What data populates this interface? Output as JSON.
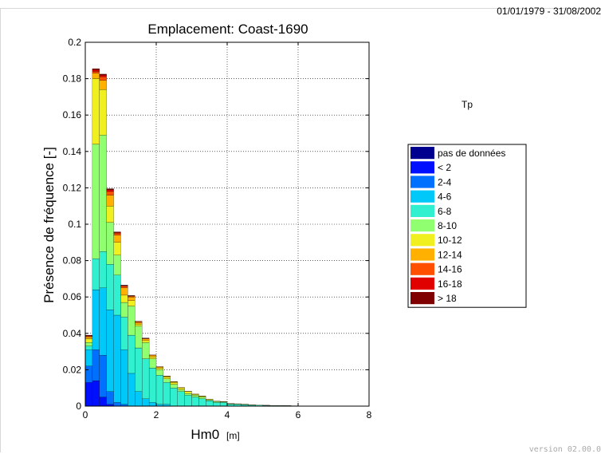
{
  "header": {
    "date_range": "01/01/1979 - 31/08/2002"
  },
  "footer": {
    "version": "version 02.00.0"
  },
  "chart_data": {
    "type": "bar",
    "stacked": true,
    "title": "Emplacement: Coast-1690",
    "xlabel": "Hm0",
    "xlabel_unit": "[m]",
    "ylabel": "Présence de fréquence [-]",
    "xlim": [
      0,
      8
    ],
    "ylim": [
      0,
      0.2
    ],
    "xticks": [
      0,
      2,
      4,
      6,
      8
    ],
    "yticks": [
      0,
      0.02,
      0.04,
      0.06,
      0.08,
      0.1,
      0.12,
      0.14,
      0.16,
      0.18,
      0.2
    ],
    "ytick_labels": [
      "0",
      "0.02",
      "0.04",
      "0.06",
      "0.08",
      "0.1",
      "0.12",
      "0.14",
      "0.16",
      "0.18",
      "0.2"
    ],
    "grid": true,
    "bin_width": 0.2,
    "legend_title": "Tp",
    "legend_position": "right",
    "x": [
      0.1,
      0.3,
      0.5,
      0.7,
      0.9,
      1.1,
      1.3,
      1.5,
      1.7,
      1.9,
      2.1,
      2.3,
      2.5,
      2.7,
      2.9,
      3.1,
      3.3,
      3.5,
      3.7,
      3.9,
      4.1,
      4.3,
      4.5,
      4.7,
      4.9,
      5.1,
      5.3,
      5.5,
      5.7,
      5.9,
      6.1,
      6.3,
      6.5,
      6.7,
      6.9,
      7.1
    ],
    "series": [
      {
        "name": "pas de données",
        "color": "#00008f",
        "values": [
          0,
          0,
          0,
          0,
          0,
          0,
          0,
          0,
          0,
          0,
          0,
          0,
          0,
          0,
          0,
          0,
          0,
          0,
          0,
          0,
          0,
          0,
          0,
          0,
          0,
          0,
          0,
          0,
          0,
          0,
          0,
          0,
          0,
          0,
          0,
          0
        ]
      },
      {
        "name": "< 2",
        "color": "#0010ff",
        "values": [
          0.013,
          0.014,
          0.005,
          0.001,
          0,
          0,
          0,
          0,
          0,
          0,
          0,
          0,
          0,
          0,
          0,
          0,
          0,
          0,
          0,
          0,
          0,
          0,
          0,
          0,
          0,
          0,
          0,
          0,
          0,
          0,
          0,
          0,
          0,
          0,
          0,
          0
        ]
      },
      {
        "name": "2-4",
        "color": "#0070ff",
        "values": [
          0.009,
          0.017,
          0.023,
          0.007,
          0.002,
          0.001,
          0,
          0,
          0,
          0,
          0,
          0,
          0,
          0,
          0,
          0,
          0,
          0,
          0,
          0,
          0,
          0,
          0,
          0,
          0,
          0,
          0,
          0,
          0,
          0,
          0,
          0,
          0,
          0,
          0,
          0
        ]
      },
      {
        "name": "4-6",
        "color": "#00c8f8",
        "values": [
          0.009,
          0.033,
          0.037,
          0.045,
          0.048,
          0.03,
          0.018,
          0.008,
          0.004,
          0.002,
          0.001,
          0.001,
          0,
          0,
          0,
          0,
          0,
          0,
          0,
          0,
          0,
          0,
          0,
          0,
          0,
          0,
          0,
          0,
          0,
          0,
          0,
          0,
          0,
          0,
          0,
          0
        ]
      },
      {
        "name": "6-8",
        "color": "#30f0d0",
        "values": [
          0.002,
          0.017,
          0.02,
          0.025,
          0.022,
          0.018,
          0.021,
          0.024,
          0.022,
          0.019,
          0.016,
          0.012,
          0.01,
          0.008,
          0.006,
          0.005,
          0.004,
          0.003,
          0.002,
          0.002,
          0.001,
          0.001,
          0.0008,
          0.0006,
          0.0005,
          0.0004,
          0.0003,
          0.0003,
          0.0002,
          0.0002,
          0.0001,
          0.0001,
          0.0001,
          0.0001,
          0.0001,
          0.0001
        ]
      },
      {
        "name": "8-10",
        "color": "#90ff70",
        "values": [
          0.002,
          0.063,
          0.064,
          0.023,
          0.011,
          0.008,
          0.016,
          0.012,
          0.009,
          0.005,
          0.003,
          0.002,
          0.002,
          0.001,
          0.001,
          0.001,
          0.001,
          0.0005,
          0.0005,
          0.0003,
          0.0003,
          0.0002,
          0.0002,
          0.0002,
          0.0001,
          0.0001,
          0.0001,
          0.0001,
          0.0001,
          0,
          0,
          0,
          0,
          0,
          0,
          0
        ]
      },
      {
        "name": "10-12",
        "color": "#f0f020",
        "values": [
          0.002,
          0.036,
          0.025,
          0.009,
          0.007,
          0.004,
          0.003,
          0.001,
          0.001,
          0.001,
          0.001,
          0.001,
          0.001,
          0.001,
          0.001,
          0.0005,
          0.0005,
          0.0003,
          0.0002,
          0.0002,
          0.0001,
          0.0001,
          0.0001,
          0,
          0,
          0,
          0,
          0,
          0,
          0,
          0,
          0,
          0,
          0,
          0,
          0
        ]
      },
      {
        "name": "12-14",
        "color": "#ffb000",
        "values": [
          0.001,
          0.003,
          0.005,
          0.006,
          0.004,
          0.004,
          0.002,
          0.001,
          0.001,
          0.001,
          0.0005,
          0.0005,
          0.0004,
          0.0003,
          0.0002,
          0.0002,
          0.0001,
          0.0001,
          0.0001,
          0.0001,
          0,
          0,
          0,
          0,
          0,
          0,
          0,
          0,
          0,
          0,
          0,
          0,
          0,
          0,
          0,
          0
        ]
      },
      {
        "name": "14-16",
        "color": "#ff5000",
        "values": [
          0.0005,
          0.001,
          0.002,
          0.002,
          0.001,
          0.001,
          0.0005,
          0.0005,
          0.0003,
          0.0002,
          0.0002,
          0.0001,
          0.0001,
          0,
          0,
          0,
          0,
          0,
          0,
          0,
          0,
          0,
          0,
          0,
          0,
          0,
          0,
          0,
          0,
          0,
          0,
          0,
          0,
          0,
          0,
          0
        ]
      },
      {
        "name": "16-18",
        "color": "#e00000",
        "values": [
          0.0003,
          0.001,
          0.001,
          0.001,
          0.0005,
          0.0003,
          0.0002,
          0.0001,
          0.0001,
          0,
          0,
          0,
          0,
          0,
          0,
          0,
          0,
          0,
          0,
          0,
          0,
          0,
          0,
          0,
          0,
          0,
          0,
          0,
          0,
          0,
          0,
          0,
          0,
          0,
          0,
          0
        ]
      },
      {
        "name": "> 18",
        "color": "#800000",
        "values": [
          0.0002,
          0.0005,
          0.0005,
          0.0005,
          0.0003,
          0.0002,
          0.0001,
          0,
          0,
          0,
          0,
          0,
          0,
          0,
          0,
          0,
          0,
          0,
          0,
          0,
          0,
          0,
          0,
          0,
          0,
          0,
          0,
          0,
          0,
          0,
          0,
          0,
          0,
          0,
          0,
          0
        ]
      }
    ]
  }
}
